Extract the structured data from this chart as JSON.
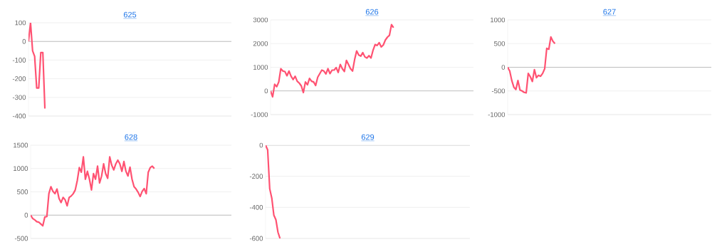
{
  "chart_data": [
    {
      "type": "line",
      "title": "625",
      "color": "#ff5272",
      "grid": "y",
      "tick_labels": "y",
      "ylim": [
        -400,
        100
      ],
      "yticks": [
        -400,
        -300,
        -200,
        -100,
        0,
        100
      ],
      "ref_lines": [
        {
          "axis": "y",
          "value": 0,
          "color": "#b0b0b0"
        }
      ],
      "categories": [
        null,
        null,
        null,
        null,
        null,
        null,
        null,
        null,
        null,
        null,
        null,
        null,
        null,
        null,
        null,
        null,
        null,
        null,
        null,
        null,
        null,
        null,
        null,
        null,
        null,
        null,
        null,
        null,
        null,
        null,
        null,
        null,
        null,
        null,
        null,
        null,
        null,
        null,
        null,
        null,
        null,
        null,
        null,
        null,
        null,
        null,
        null,
        null,
        null,
        null,
        null,
        null,
        null,
        null,
        null,
        null,
        null,
        null,
        null,
        null,
        null,
        null,
        null,
        null,
        null,
        null,
        null,
        null,
        null,
        null,
        null,
        null,
        null,
        null,
        null,
        null,
        null,
        null,
        null,
        null,
        null,
        null,
        null,
        null,
        null,
        null,
        null,
        null,
        null,
        null,
        null,
        null,
        null,
        null,
        null,
        null,
        null,
        null,
        null,
        null
      ],
      "values": [
        0,
        100,
        -50,
        -80,
        -250,
        -250,
        -60,
        -60,
        -360,
        null,
        null,
        null,
        null,
        null,
        null,
        null,
        null,
        null,
        null,
        null,
        null,
        null,
        null,
        null,
        null,
        null,
        null,
        null,
        null,
        null,
        null,
        null,
        null,
        null,
        null,
        null,
        null,
        null,
        null,
        null,
        null,
        null,
        null,
        null,
        null,
        null,
        null,
        null,
        null,
        null,
        null,
        null,
        null,
        null,
        null,
        null,
        null,
        null,
        null,
        null,
        null,
        null,
        null,
        null,
        null,
        null,
        null,
        null,
        null,
        null,
        null,
        null,
        null,
        null,
        null,
        null,
        null,
        null,
        null,
        null,
        null,
        null,
        null,
        null,
        null,
        null,
        null,
        null,
        null,
        null,
        null,
        null,
        null,
        null,
        null,
        null,
        null,
        null,
        null,
        null
      ]
    },
    {
      "type": "line",
      "title": "626",
      "color": "#ff5272",
      "grid": "y",
      "tick_labels": "y",
      "ylim": [
        -1000,
        3000
      ],
      "yticks": [
        -1000,
        0,
        1000,
        2000,
        3000
      ],
      "ref_lines": [
        {
          "axis": "y",
          "value": 0,
          "color": "#b0b0b0"
        }
      ],
      "categories": [
        null,
        null,
        null,
        null,
        null,
        null,
        null,
        null,
        null,
        null,
        null,
        null,
        null,
        null,
        null,
        null,
        null,
        null,
        null,
        null,
        null,
        null,
        null,
        null,
        null,
        null,
        null,
        null,
        null,
        null,
        null,
        null,
        null,
        null,
        null,
        null,
        null,
        null,
        null,
        null,
        null,
        null,
        null,
        null,
        null,
        null,
        null,
        null,
        null,
        null,
        null,
        null,
        null,
        null,
        null,
        null,
        null,
        null,
        null,
        null,
        null,
        null,
        null,
        null,
        null,
        null,
        null,
        null,
        null,
        null,
        null,
        null,
        null,
        null,
        null,
        null,
        null,
        null,
        null,
        null,
        null,
        null,
        null,
        null,
        null,
        null,
        null,
        null,
        null,
        null,
        null,
        null,
        null,
        null,
        null,
        null,
        null,
        null,
        null,
        null
      ],
      "values": [
        0,
        -250,
        280,
        180,
        380,
        940,
        840,
        820,
        640,
        840,
        620,
        480,
        620,
        410,
        330,
        210,
        -70,
        380,
        260,
        530,
        410,
        380,
        230,
        580,
        730,
        880,
        840,
        720,
        940,
        730,
        880,
        880,
        990,
        780,
        1120,
        940,
        820,
        1290,
        1120,
        940,
        840,
        1320,
        1690,
        1520,
        1470,
        1620,
        1440,
        1390,
        1490,
        1390,
        1720,
        1960,
        1920,
        2040,
        1860,
        1940,
        2150,
        2270,
        2350,
        2800,
        2670,
        null,
        null,
        null,
        null,
        null,
        null,
        null,
        null,
        null,
        null,
        null,
        null,
        null,
        null,
        null,
        null,
        null,
        null,
        null,
        null,
        null,
        null,
        null,
        null,
        null,
        null,
        null,
        null,
        null,
        null,
        null,
        null,
        null,
        null,
        null,
        null,
        null,
        null,
        null
      ]
    },
    {
      "type": "line",
      "title": "627",
      "color": "#ff5272",
      "grid": "y",
      "tick_labels": "y",
      "ylim": [
        -1000,
        1000
      ],
      "yticks": [
        -1000,
        -500,
        0,
        500,
        1000
      ],
      "ref_lines": [
        {
          "axis": "y",
          "value": 0,
          "color": "#b0b0b0"
        }
      ],
      "categories": [
        null,
        null,
        null,
        null,
        null,
        null,
        null,
        null,
        null,
        null,
        null,
        null,
        null,
        null,
        null,
        null,
        null,
        null,
        null,
        null,
        null,
        null,
        null,
        null,
        null,
        null,
        null,
        null,
        null,
        null,
        null,
        null,
        null,
        null,
        null,
        null,
        null,
        null,
        null,
        null,
        null,
        null,
        null,
        null,
        null,
        null,
        null,
        null,
        null,
        null,
        null,
        null,
        null,
        null,
        null,
        null,
        null,
        null,
        null,
        null,
        null,
        null,
        null,
        null,
        null,
        null,
        null,
        null,
        null,
        null,
        null,
        null,
        null,
        null,
        null,
        null,
        null,
        null,
        null,
        null,
        null,
        null,
        null,
        null,
        null,
        null,
        null,
        null,
        null,
        null,
        null,
        null,
        null,
        null,
        null,
        null,
        null,
        null,
        null,
        null
      ],
      "values": [
        0,
        -80,
        -280,
        -420,
        -470,
        -280,
        -480,
        -500,
        -530,
        -540,
        -130,
        -200,
        -300,
        -50,
        -220,
        -170,
        -190,
        -130,
        -30,
        400,
        380,
        640,
        550,
        500,
        null,
        null,
        null,
        null,
        null,
        null,
        null,
        null,
        null,
        null,
        null,
        null,
        null,
        null,
        null,
        null,
        null,
        null,
        null,
        null,
        null,
        null,
        null,
        null,
        null,
        null,
        null,
        null,
        null,
        null,
        null,
        null,
        null,
        null,
        null,
        null,
        null,
        null,
        null,
        null,
        null,
        null,
        null,
        null,
        null,
        null,
        null,
        null,
        null,
        null,
        null,
        null,
        null,
        null,
        null,
        null,
        null,
        null,
        null,
        null,
        null,
        null,
        null,
        null,
        null,
        null,
        null,
        null,
        null,
        null,
        null,
        null,
        null,
        null,
        null,
        null
      ]
    },
    {
      "type": "line",
      "title": "628",
      "color": "#ff5272",
      "grid": "y",
      "tick_labels": "y",
      "ylim": [
        -500,
        1500
      ],
      "yticks": [
        -500,
        0,
        500,
        1000,
        1500
      ],
      "ref_lines": [
        {
          "axis": "y",
          "value": 0,
          "color": "#b0b0b0"
        }
      ],
      "categories": [
        null,
        null,
        null,
        null,
        null,
        null,
        null,
        null,
        null,
        null,
        null,
        null,
        null,
        null,
        null,
        null,
        null,
        null,
        null,
        null,
        null,
        null,
        null,
        null,
        null,
        null,
        null,
        null,
        null,
        null,
        null,
        null,
        null,
        null,
        null,
        null,
        null,
        null,
        null,
        null,
        null,
        null,
        null,
        null,
        null,
        null,
        null,
        null,
        null,
        null,
        null,
        null,
        null,
        null,
        null,
        null,
        null,
        null,
        null,
        null,
        null,
        null,
        null,
        null,
        null,
        null,
        null,
        null,
        null,
        null,
        null,
        null,
        null,
        null,
        null,
        null,
        null,
        null,
        null,
        null,
        null,
        null,
        null,
        null,
        null,
        null,
        null,
        null,
        null,
        null,
        null,
        null,
        null,
        null,
        null,
        null,
        null,
        null,
        null,
        null
      ],
      "values": [
        0,
        -70,
        -100,
        -140,
        -150,
        -190,
        -230,
        -40,
        -30,
        460,
        610,
        510,
        460,
        560,
        360,
        270,
        380,
        330,
        200,
        380,
        410,
        460,
        540,
        740,
        1020,
        920,
        1250,
        770,
        940,
        770,
        540,
        890,
        770,
        1050,
        690,
        840,
        1100,
        890,
        790,
        1250,
        1070,
        970,
        1100,
        1180,
        1100,
        940,
        1150,
        940,
        840,
        1030,
        770,
        610,
        560,
        490,
        400,
        510,
        570,
        460,
        920,
        1020,
        1050,
        1000,
        null,
        null,
        null,
        null,
        null,
        null,
        null,
        null,
        null,
        null,
        null,
        null,
        null,
        null,
        null,
        null,
        null,
        null,
        null,
        null,
        null,
        null,
        null,
        null,
        null,
        null,
        null,
        null,
        null,
        null,
        null,
        null,
        null,
        null,
        null,
        null,
        null,
        null
      ]
    },
    {
      "type": "line",
      "title": "629",
      "color": "#ff5272",
      "grid": "y",
      "tick_labels": "y",
      "ylim": [
        -600,
        0
      ],
      "yticks": [
        -600,
        -400,
        -200,
        0
      ],
      "ref_lines": [
        {
          "axis": "y",
          "value": 0,
          "color": "#b0b0b0"
        }
      ],
      "categories": [
        null,
        null,
        null,
        null,
        null,
        null,
        null,
        null,
        null,
        null,
        null,
        null,
        null,
        null,
        null,
        null,
        null,
        null,
        null,
        null,
        null,
        null,
        null,
        null,
        null,
        null,
        null,
        null,
        null,
        null,
        null,
        null,
        null,
        null,
        null,
        null,
        null,
        null,
        null,
        null,
        null,
        null,
        null,
        null,
        null,
        null,
        null,
        null,
        null,
        null,
        null,
        null,
        null,
        null,
        null,
        null,
        null,
        null,
        null,
        null,
        null,
        null,
        null,
        null,
        null,
        null,
        null,
        null,
        null,
        null,
        null,
        null,
        null,
        null,
        null,
        null,
        null,
        null,
        null,
        null,
        null,
        null,
        null,
        null,
        null,
        null,
        null,
        null,
        null,
        null,
        null,
        null,
        null,
        null,
        null,
        null,
        null,
        null,
        null,
        null
      ],
      "values": [
        0,
        -30,
        -280,
        -340,
        -450,
        -480,
        -560,
        -600,
        null,
        null,
        null,
        null,
        null,
        null,
        null,
        null,
        null,
        null,
        null,
        null,
        null,
        null,
        null,
        null,
        null,
        null,
        null,
        null,
        null,
        null,
        null,
        null,
        null,
        null,
        null,
        null,
        null,
        null,
        null,
        null,
        null,
        null,
        null,
        null,
        null,
        null,
        null,
        null,
        null,
        null,
        null,
        null,
        null,
        null,
        null,
        null,
        null,
        null,
        null,
        null,
        null,
        null,
        null,
        null,
        null,
        null,
        null,
        null,
        null,
        null,
        null,
        null,
        null,
        null,
        null,
        null,
        null,
        null,
        null,
        null,
        null,
        null,
        null,
        null,
        null,
        null,
        null,
        null,
        null,
        null,
        null,
        null,
        null,
        null,
        null,
        null,
        null,
        null,
        null,
        null
      ]
    }
  ]
}
